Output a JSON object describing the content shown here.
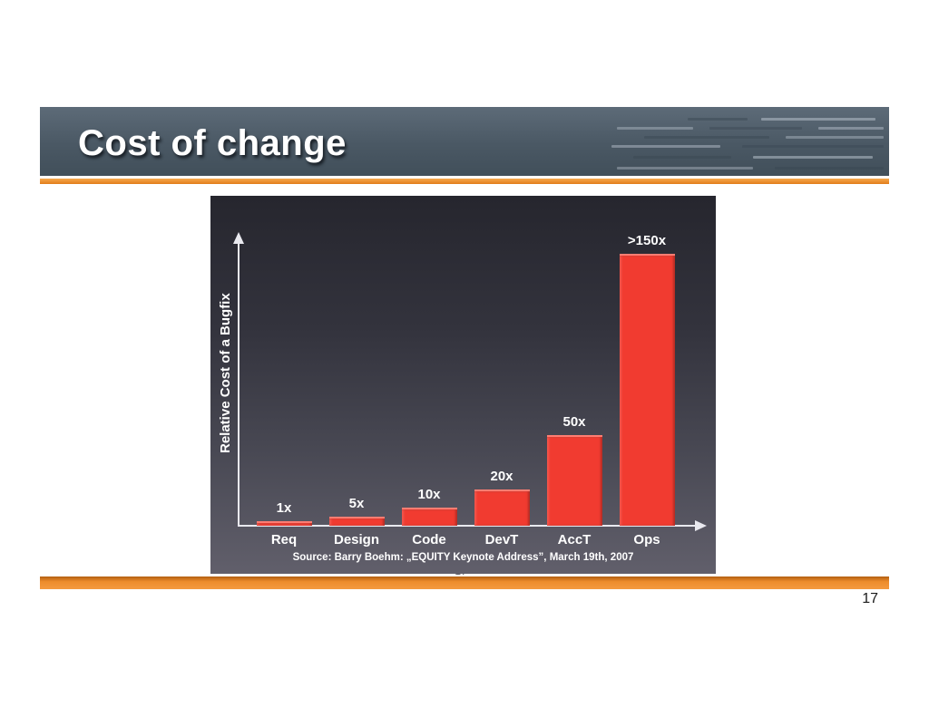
{
  "page": {
    "page_number": "17"
  },
  "slide": {
    "title": "Cost of change",
    "page_mark": "17"
  },
  "colors": {
    "accent_orange": "#ee8c2b",
    "header_slate": "#4c5a66",
    "bar_red": "#f13b30",
    "chart_background_top": "#26262e",
    "chart_background_bottom": "#615f6b"
  },
  "chart_data": {
    "type": "bar",
    "title": "",
    "categories": [
      "Req",
      "Design",
      "Code",
      "DevT",
      "AccT",
      "Ops"
    ],
    "values": [
      1,
      5,
      10,
      20,
      50,
      150
    ],
    "value_labels": [
      "1x",
      "5x",
      "10x",
      "20x",
      "50x",
      ">150x"
    ],
    "xlabel": "",
    "ylabel": "Relative Cost of a Bugfix",
    "ylim": [
      0,
      160
    ],
    "grid": false,
    "legend": false,
    "bar_color": "#f13b30",
    "source": "Source: Barry Boehm: „EQUITY Keynote Address”, March 19th, 2007"
  }
}
